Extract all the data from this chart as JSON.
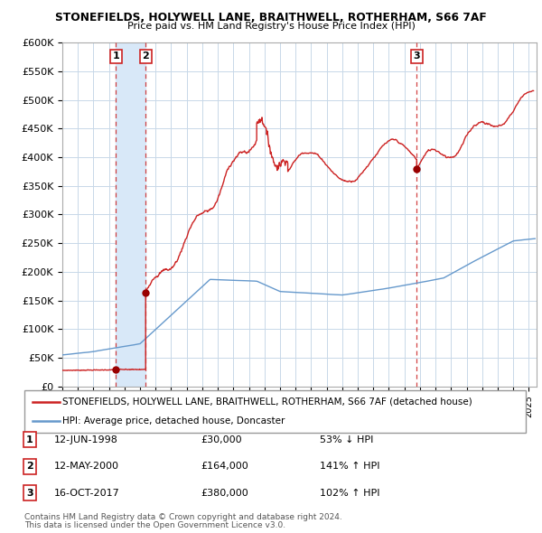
{
  "title": "STONEFIELDS, HOLYWELL LANE, BRAITHWELL, ROTHERHAM, S66 7AF",
  "subtitle": "Price paid vs. HM Land Registry's House Price Index (HPI)",
  "ylim": [
    0,
    600000
  ],
  "yticks": [
    0,
    50000,
    100000,
    150000,
    200000,
    250000,
    300000,
    350000,
    400000,
    450000,
    500000,
    550000,
    600000
  ],
  "xlim_start": 1995.0,
  "xlim_end": 2025.5,
  "background_color": "#ffffff",
  "grid_color": "#c8d8e8",
  "red_line_color": "#cc2222",
  "blue_line_color": "#6699cc",
  "transaction_marker_color": "#990000",
  "span_color": "#d8e8f8",
  "transactions": [
    {
      "num": 1,
      "date_str": "12-JUN-1998",
      "year": 1998.44,
      "price": 30000,
      "pct": "53%",
      "dir": "↓"
    },
    {
      "num": 2,
      "date_str": "12-MAY-2000",
      "year": 2000.36,
      "price": 164000,
      "pct": "141%",
      "dir": "↑"
    },
    {
      "num": 3,
      "date_str": "16-OCT-2017",
      "year": 2017.79,
      "price": 380000,
      "pct": "102%",
      "dir": "↑"
    }
  ],
  "legend_red_label": "STONEFIELDS, HOLYWELL LANE, BRAITHWELL, ROTHERHAM, S66 7AF (detached house)",
  "legend_blue_label": "HPI: Average price, detached house, Doncaster",
  "footer1": "Contains HM Land Registry data © Crown copyright and database right 2024.",
  "footer2": "This data is licensed under the Open Government Licence v3.0."
}
